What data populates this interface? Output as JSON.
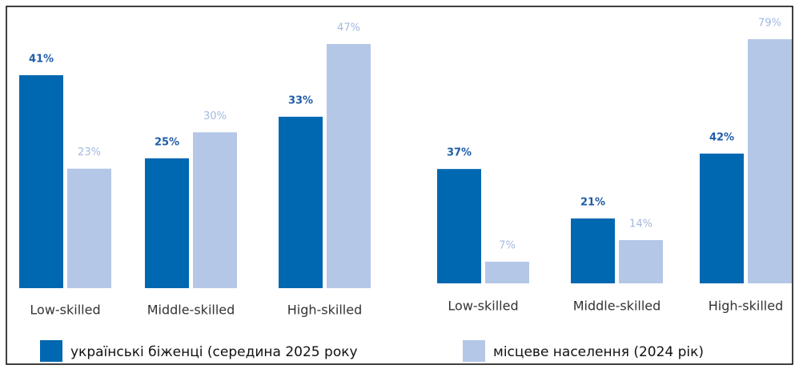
{
  "chart_data": [
    {
      "type": "bar",
      "categories": [
        "Low-skilled",
        "Middle-skilled",
        "High-skilled"
      ],
      "series": [
        {
          "name": "українські біженці (середина 2025 року",
          "color": "#0067b1",
          "values": [
            41,
            25,
            33
          ],
          "value_labels": [
            "41%",
            "25%",
            "33%"
          ]
        },
        {
          "name": "місцеве населення (2024 рік)",
          "color": "#b4c7e7",
          "values": [
            23,
            30,
            47
          ],
          "value_labels": [
            "23%",
            "30%",
            "47%"
          ]
        }
      ]
    },
    {
      "type": "bar",
      "categories": [
        "Low-skilled",
        "Middle-skilled",
        "High-skilled"
      ],
      "series": [
        {
          "color": "#0067b1",
          "values": [
            37,
            21,
            42
          ],
          "value_labels": [
            "37%",
            "21%",
            "42%"
          ]
        },
        {
          "color": "#b4c7e7",
          "values": [
            7,
            14,
            79
          ],
          "value_labels": [
            "7%",
            "14%",
            "79%"
          ]
        }
      ]
    }
  ]
}
